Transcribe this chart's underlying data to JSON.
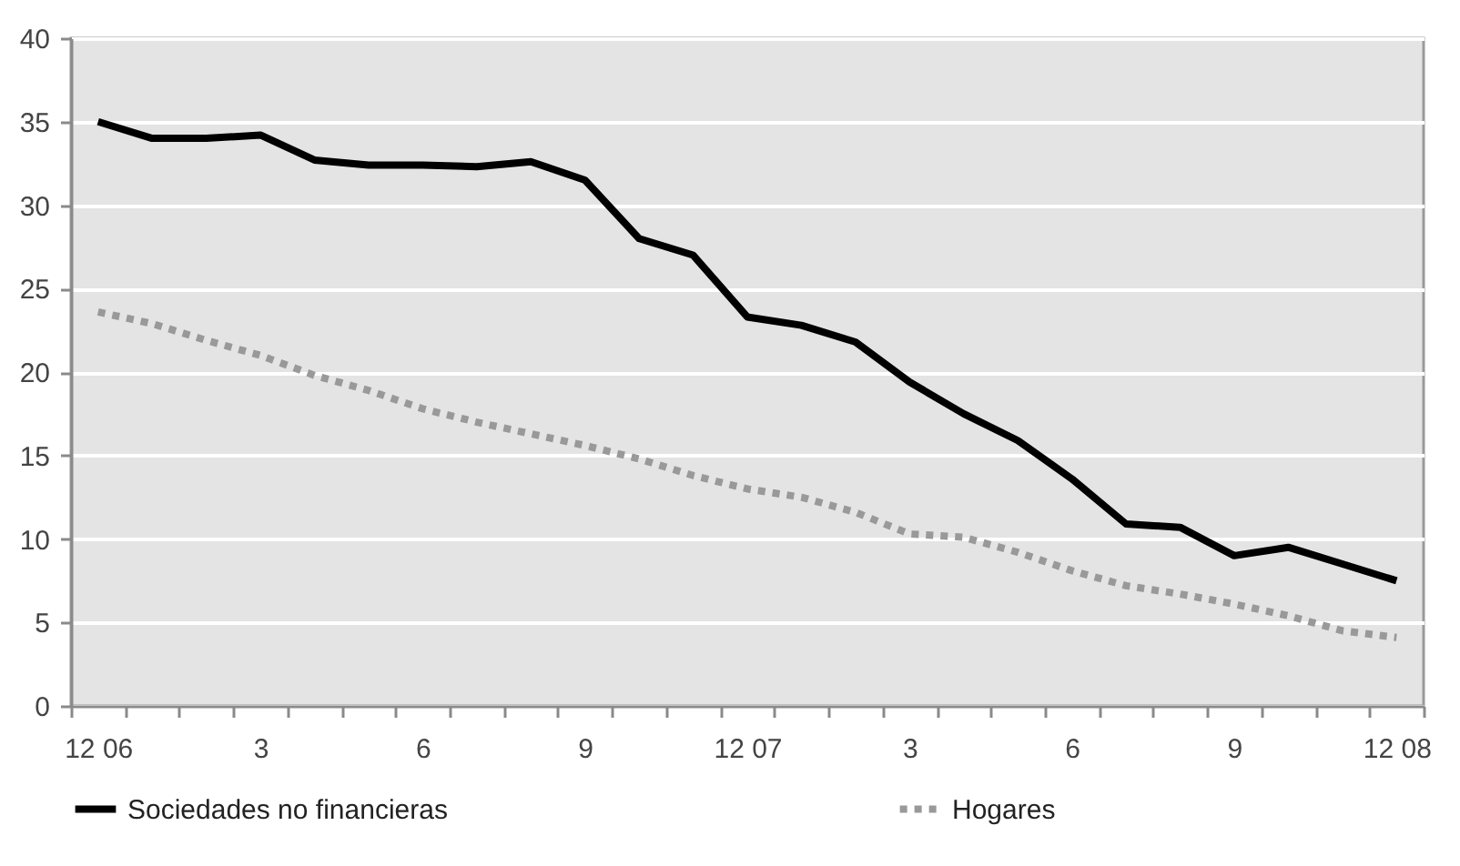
{
  "chart_data": {
    "type": "line",
    "categories": [
      "12 06",
      null,
      null,
      "3",
      null,
      null,
      "6",
      null,
      null,
      "9",
      null,
      null,
      "12 07",
      null,
      null,
      "3",
      null,
      null,
      "6",
      null,
      null,
      "9",
      null,
      null,
      "12 08"
    ],
    "series": [
      {
        "name": "Sociedades no financieras",
        "color": "#000000",
        "line_style": "solid",
        "values": [
          35.0,
          34.0,
          34.0,
          34.2,
          32.7,
          32.4,
          32.4,
          32.3,
          32.6,
          31.5,
          28.0,
          27.0,
          23.3,
          22.8,
          21.8,
          19.4,
          17.5,
          15.9,
          13.6,
          10.9,
          10.7,
          9.0,
          9.5,
          8.5,
          7.5
        ]
      },
      {
        "name": "Hogares",
        "color": "#999999",
        "line_style": "dotted",
        "values": [
          23.6,
          22.9,
          21.9,
          21.0,
          19.8,
          18.9,
          17.8,
          17.0,
          16.3,
          15.6,
          14.8,
          13.8,
          13.0,
          12.5,
          11.6,
          10.3,
          10.1,
          9.2,
          8.1,
          7.2,
          6.7,
          6.1,
          5.4,
          4.5,
          4.1
        ]
      }
    ],
    "ylim": [
      0,
      40
    ],
    "yticks": [
      0,
      5,
      10,
      15,
      20,
      25,
      30,
      35,
      40
    ],
    "grid": "y",
    "legend": "bottom"
  }
}
